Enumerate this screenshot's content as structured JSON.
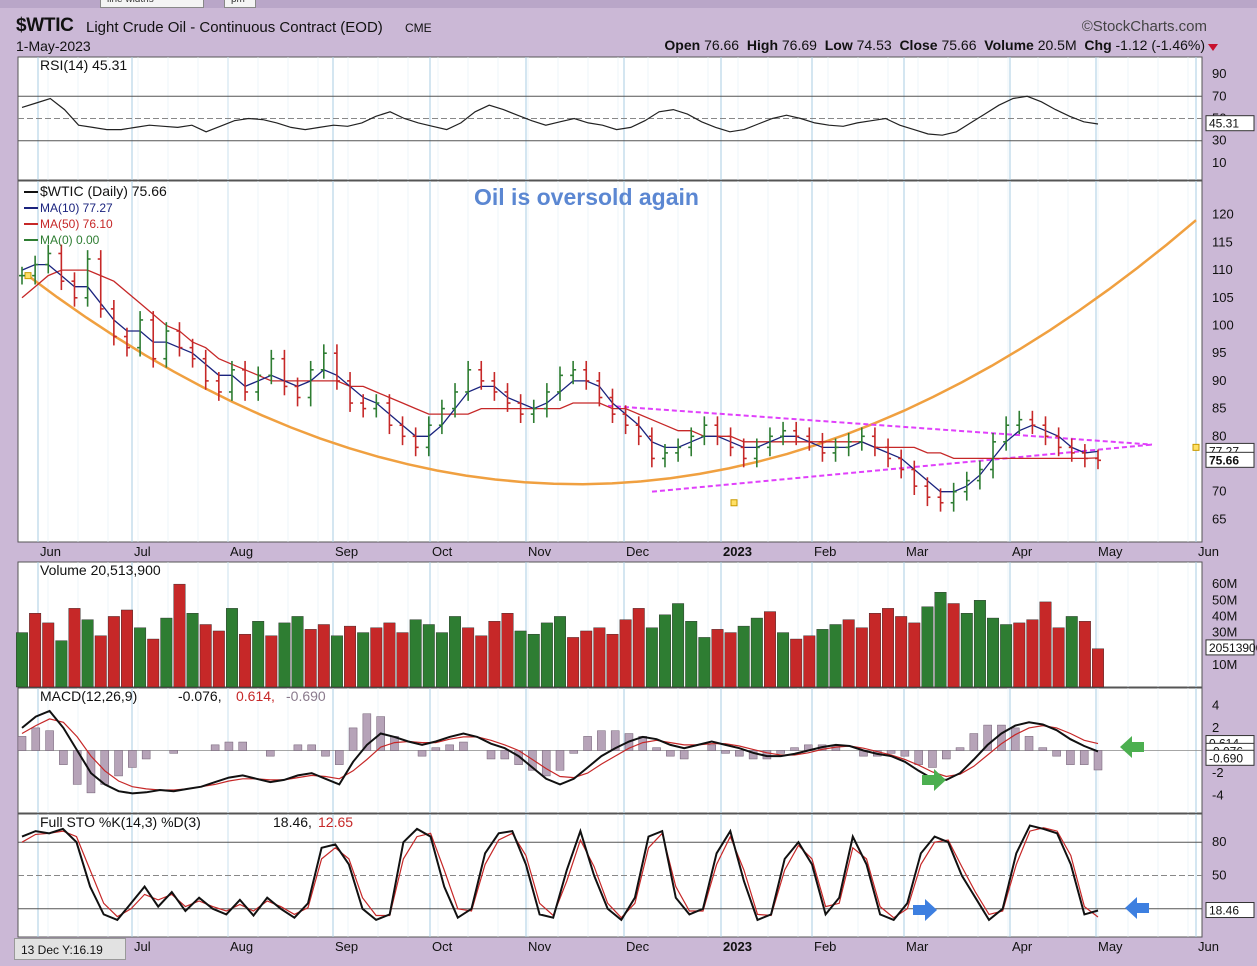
{
  "toolbar": {
    "tab1": "line widths",
    "tab2": "pm"
  },
  "header": {
    "symbol": "$WTIC",
    "description": "Light Crude Oil - Continuous Contract (EOD)",
    "exchange": "CME",
    "date": "1-May-2023",
    "brand": "©StockCharts.com",
    "open_label": "Open",
    "open": "76.66",
    "high_label": "High",
    "high": "76.69",
    "low_label": "Low",
    "low": "74.53",
    "close_label": "Close",
    "close": "75.66",
    "volume_label": "Volume",
    "volume": "20.5M",
    "chg_label": "Chg",
    "chg": "-1.12 (-1.46%)",
    "chg_color": "#c8102e"
  },
  "annotation": "Oil is oversold again",
  "cursor_readout": "13 Dec Y:16.19",
  "months": [
    "Jun",
    "Jul",
    "Aug",
    "Sep",
    "Oct",
    "Nov",
    "Dec",
    "2023",
    "Feb",
    "Mar",
    "Apr",
    "May",
    "Jun"
  ],
  "colors": {
    "up": "#2e7d32",
    "down": "#c62828",
    "ma10": "#1a237e",
    "ma50": "#c62828",
    "trend": "#f0a040",
    "triangle": "#e040fb",
    "arrow_green": "#4caf50",
    "arrow_blue": "#3d7fe0",
    "panel_bg": "#ffffff",
    "grid": "#a9cce3"
  },
  "chart_data": [
    {
      "type": "line",
      "title": "RSI(14) 45.31",
      "last_value": "45.31",
      "ylim": [
        0,
        100
      ],
      "ticks": [
        "90",
        "70",
        "50",
        "30",
        "10"
      ],
      "values": [
        60,
        64,
        68,
        58,
        44,
        42,
        40,
        40,
        42,
        44,
        43,
        42,
        44,
        38,
        43,
        48,
        50,
        49,
        46,
        42,
        40,
        42,
        44,
        43,
        46,
        52,
        56,
        50,
        46,
        43,
        40,
        46,
        56,
        62,
        58,
        53,
        48,
        44,
        47,
        50,
        46,
        44,
        40,
        42,
        48,
        56,
        58,
        54,
        47,
        42,
        38,
        40,
        45,
        50,
        53,
        50,
        46,
        44,
        43,
        46,
        48,
        50,
        44,
        40,
        36,
        35,
        38,
        46,
        54,
        62,
        68,
        70,
        65,
        58,
        52,
        47,
        45
      ]
    },
    {
      "type": "line",
      "title": "$WTIC (Daily) 75.66",
      "ylim": [
        62,
        125
      ],
      "ticks": [
        "120",
        "115",
        "110",
        "105",
        "100",
        "95",
        "90",
        "85",
        "80",
        "70",
        "65"
      ],
      "last_label": "75.66",
      "ma_label": "77.27",
      "series": [
        {
          "name": "$WTIC (Daily) 75.66",
          "values": [
            109,
            111,
            113,
            108,
            105,
            112,
            103,
            98,
            96,
            101,
            94,
            99,
            96,
            94,
            90,
            88,
            92,
            88,
            91,
            94,
            89,
            87,
            92,
            95,
            90,
            86,
            85,
            86,
            82,
            80,
            78,
            82,
            85,
            88,
            92,
            90,
            88,
            86,
            84,
            85,
            88,
            91,
            92,
            90,
            87,
            84,
            82,
            80,
            76,
            77,
            78,
            80,
            82,
            80,
            78,
            76,
            78,
            80,
            81,
            80,
            79,
            77,
            78,
            79,
            80,
            78,
            76,
            74,
            71,
            69,
            68,
            70,
            72,
            74,
            79,
            82,
            83,
            82,
            80,
            78,
            77,
            76,
            75.66
          ]
        },
        {
          "name": "MA(10) 77.27",
          "values": [
            110,
            111,
            111,
            109,
            107,
            107,
            104,
            101,
            99,
            99,
            97,
            97,
            96,
            95,
            93,
            91,
            91,
            89,
            90,
            91,
            90,
            89,
            90,
            92,
            91,
            89,
            87,
            86,
            84,
            82,
            80,
            80,
            82,
            85,
            88,
            89,
            89,
            87,
            86,
            85,
            86,
            88,
            90,
            90,
            89,
            86,
            84,
            82,
            79,
            78,
            78,
            79,
            80,
            80,
            79,
            78,
            78,
            79,
            80,
            80,
            79,
            78,
            78,
            78,
            79,
            78,
            77,
            76,
            74,
            72,
            70,
            70,
            71,
            73,
            76,
            79,
            81,
            82,
            81,
            80,
            78,
            77,
            77.27
          ]
        },
        {
          "name": "MA(50) 76.10",
          "values": [
            105,
            107,
            109,
            110,
            110,
            110,
            109,
            108,
            106,
            104,
            102,
            100,
            99,
            97,
            96,
            94,
            93,
            92,
            91,
            90,
            90,
            90,
            90,
            90,
            90,
            89,
            89,
            88,
            87,
            86,
            85,
            84,
            84,
            84,
            84,
            85,
            85,
            85,
            85,
            85,
            85,
            85,
            86,
            86,
            86,
            85,
            85,
            84,
            83,
            82,
            81,
            81,
            80,
            80,
            80,
            79,
            79,
            79,
            79,
            79,
            79,
            79,
            79,
            79,
            79,
            78,
            78,
            78,
            78,
            77,
            77,
            76,
            76,
            76,
            76,
            76,
            76,
            76,
            76,
            76,
            76,
            76,
            76.1
          ]
        },
        {
          "name": "MA(0) 0.00",
          "values": []
        }
      ]
    },
    {
      "type": "bar",
      "title": "Volume 20,513,900",
      "last_label": "20513900",
      "ylim": [
        0,
        70
      ],
      "ticks": [
        "60M",
        "50M",
        "40M",
        "30M",
        "20M",
        "10M"
      ],
      "values": [
        30,
        42,
        36,
        25,
        45,
        38,
        28,
        40,
        44,
        33,
        26,
        39,
        60,
        42,
        35,
        31,
        45,
        29,
        37,
        28,
        36,
        40,
        32,
        35,
        28,
        34,
        30,
        33,
        36,
        30,
        38,
        35,
        30,
        40,
        33,
        28,
        37,
        42,
        31,
        29,
        36,
        40,
        27,
        31,
        33,
        29,
        38,
        45,
        33,
        41,
        48,
        37,
        27,
        32,
        30,
        34,
        39,
        43,
        30,
        26,
        28,
        32,
        35,
        38,
        33,
        42,
        45,
        40,
        36,
        46,
        55,
        48,
        42,
        50,
        39,
        35,
        36,
        38,
        49,
        33,
        40,
        37,
        20
      ],
      "up_pattern": [
        1,
        0,
        0,
        1,
        0,
        1,
        0,
        0,
        0,
        1,
        0,
        1,
        0,
        1,
        0,
        0,
        1,
        0,
        1,
        0,
        1,
        1,
        0,
        0,
        1,
        0,
        1,
        0,
        0,
        0,
        1,
        1,
        1,
        1,
        0,
        0,
        0,
        0,
        1,
        1,
        1,
        1,
        0,
        0,
        0,
        0,
        0,
        0,
        1,
        1,
        1,
        1,
        1,
        0,
        0,
        1,
        1,
        0,
        1,
        0,
        0,
        1,
        1,
        0,
        0,
        0,
        0,
        0,
        0,
        1,
        1,
        0,
        1,
        1,
        1,
        1,
        0,
        0,
        0,
        0,
        1,
        0,
        0
      ]
    },
    {
      "type": "line",
      "title": "MACD(12,26,9) -0.076, 0.614, -0.690",
      "values_label": [
        "-0.076",
        "0.614",
        "-0.690"
      ],
      "ylim": [
        -5,
        5
      ],
      "ticks": [
        "4",
        "2",
        "0",
        "-2",
        "-4"
      ],
      "series": [
        {
          "name": "MACD",
          "values": [
            2,
            3,
            3.5,
            2,
            0,
            -2,
            -3,
            -3.6,
            -3.8,
            -3.7,
            -3.5,
            -3.6,
            -3.4,
            -3.2,
            -2.8,
            -2.4,
            -2.2,
            -2.5,
            -2.8,
            -2.6,
            -2.2,
            -2.0,
            -2.5,
            -3.0,
            -1.0,
            0.5,
            1.5,
            1.2,
            0.8,
            0.5,
            0.8,
            1.2,
            1.5,
            1.2,
            0.6,
            0.2,
            -0.5,
            -1.5,
            -2.5,
            -3.0,
            -2.5,
            -1.5,
            -0.5,
            0.2,
            0.8,
            1.2,
            1.0,
            0.5,
            0.2,
            0.5,
            0.8,
            0.5,
            0.2,
            -0.2,
            -0.5,
            -0.5,
            -0.3,
            0.0,
            0.3,
            0.5,
            0.4,
            0.0,
            -0.3,
            -0.5,
            -1.0,
            -1.8,
            -2.5,
            -2.6,
            -2.0,
            -0.8,
            0.5,
            1.5,
            2.2,
            2.5,
            2.3,
            1.8,
            1.0,
            0.4,
            -0.076
          ]
        },
        {
          "name": "Signal",
          "values": [
            1.5,
            2.2,
            2.8,
            2.5,
            1.2,
            -0.5,
            -1.8,
            -2.7,
            -3.2,
            -3.4,
            -3.5,
            -3.5,
            -3.4,
            -3.2,
            -3.0,
            -2.7,
            -2.5,
            -2.5,
            -2.6,
            -2.6,
            -2.4,
            -2.2,
            -2.3,
            -2.5,
            -1.8,
            -0.8,
            0.3,
            0.7,
            0.8,
            0.7,
            0.7,
            1.0,
            1.2,
            1.2,
            0.9,
            0.5,
            0.0,
            -0.8,
            -1.6,
            -2.3,
            -2.4,
            -2.0,
            -1.2,
            -0.5,
            0.2,
            0.7,
            0.9,
            0.7,
            0.5,
            0.5,
            0.6,
            0.6,
            0.4,
            0.1,
            -0.2,
            -0.4,
            -0.4,
            -0.2,
            0.1,
            0.3,
            0.4,
            0.2,
            -0.1,
            -0.4,
            -0.8,
            -1.3,
            -1.9,
            -2.3,
            -2.1,
            -1.4,
            -0.4,
            0.6,
            1.4,
            2.0,
            2.2,
            2.0,
            1.5,
            0.9,
            0.614
          ]
        }
      ]
    },
    {
      "type": "line",
      "title": "Full STO %K(14,3) %D(3) 18.46, 12.65",
      "values_label": [
        "18.46",
        "12.65"
      ],
      "ylim": [
        0,
        100
      ],
      "ticks": [
        "80",
        "50",
        "20"
      ],
      "series": [
        {
          "name": "%K",
          "values": [
            85,
            90,
            88,
            92,
            80,
            40,
            15,
            10,
            25,
            40,
            22,
            35,
            18,
            30,
            20,
            15,
            28,
            14,
            30,
            20,
            12,
            25,
            75,
            78,
            60,
            20,
            10,
            15,
            80,
            92,
            85,
            40,
            12,
            20,
            70,
            88,
            90,
            60,
            15,
            12,
            55,
            90,
            50,
            20,
            10,
            30,
            85,
            90,
            30,
            15,
            20,
            70,
            90,
            45,
            10,
            15,
            65,
            80,
            60,
            15,
            30,
            85,
            60,
            15,
            10,
            25,
            70,
            85,
            80,
            50,
            30,
            10,
            20,
            70,
            95,
            92,
            88,
            60,
            15,
            18.46
          ]
        },
        {
          "name": "%D",
          "values": [
            80,
            87,
            88,
            90,
            85,
            55,
            25,
            13,
            20,
            33,
            28,
            33,
            22,
            27,
            22,
            18,
            24,
            18,
            27,
            22,
            15,
            21,
            65,
            75,
            65,
            30,
            14,
            14,
            65,
            85,
            88,
            55,
            20,
            18,
            60,
            82,
            88,
            68,
            25,
            14,
            45,
            82,
            58,
            25,
            12,
            25,
            75,
            88,
            40,
            18,
            18,
            60,
            85,
            55,
            15,
            14,
            55,
            77,
            65,
            22,
            25,
            75,
            65,
            22,
            12,
            20,
            60,
            80,
            82,
            58,
            35,
            15,
            18,
            60,
            90,
            93,
            90,
            68,
            22,
            12.65
          ]
        }
      ]
    }
  ]
}
